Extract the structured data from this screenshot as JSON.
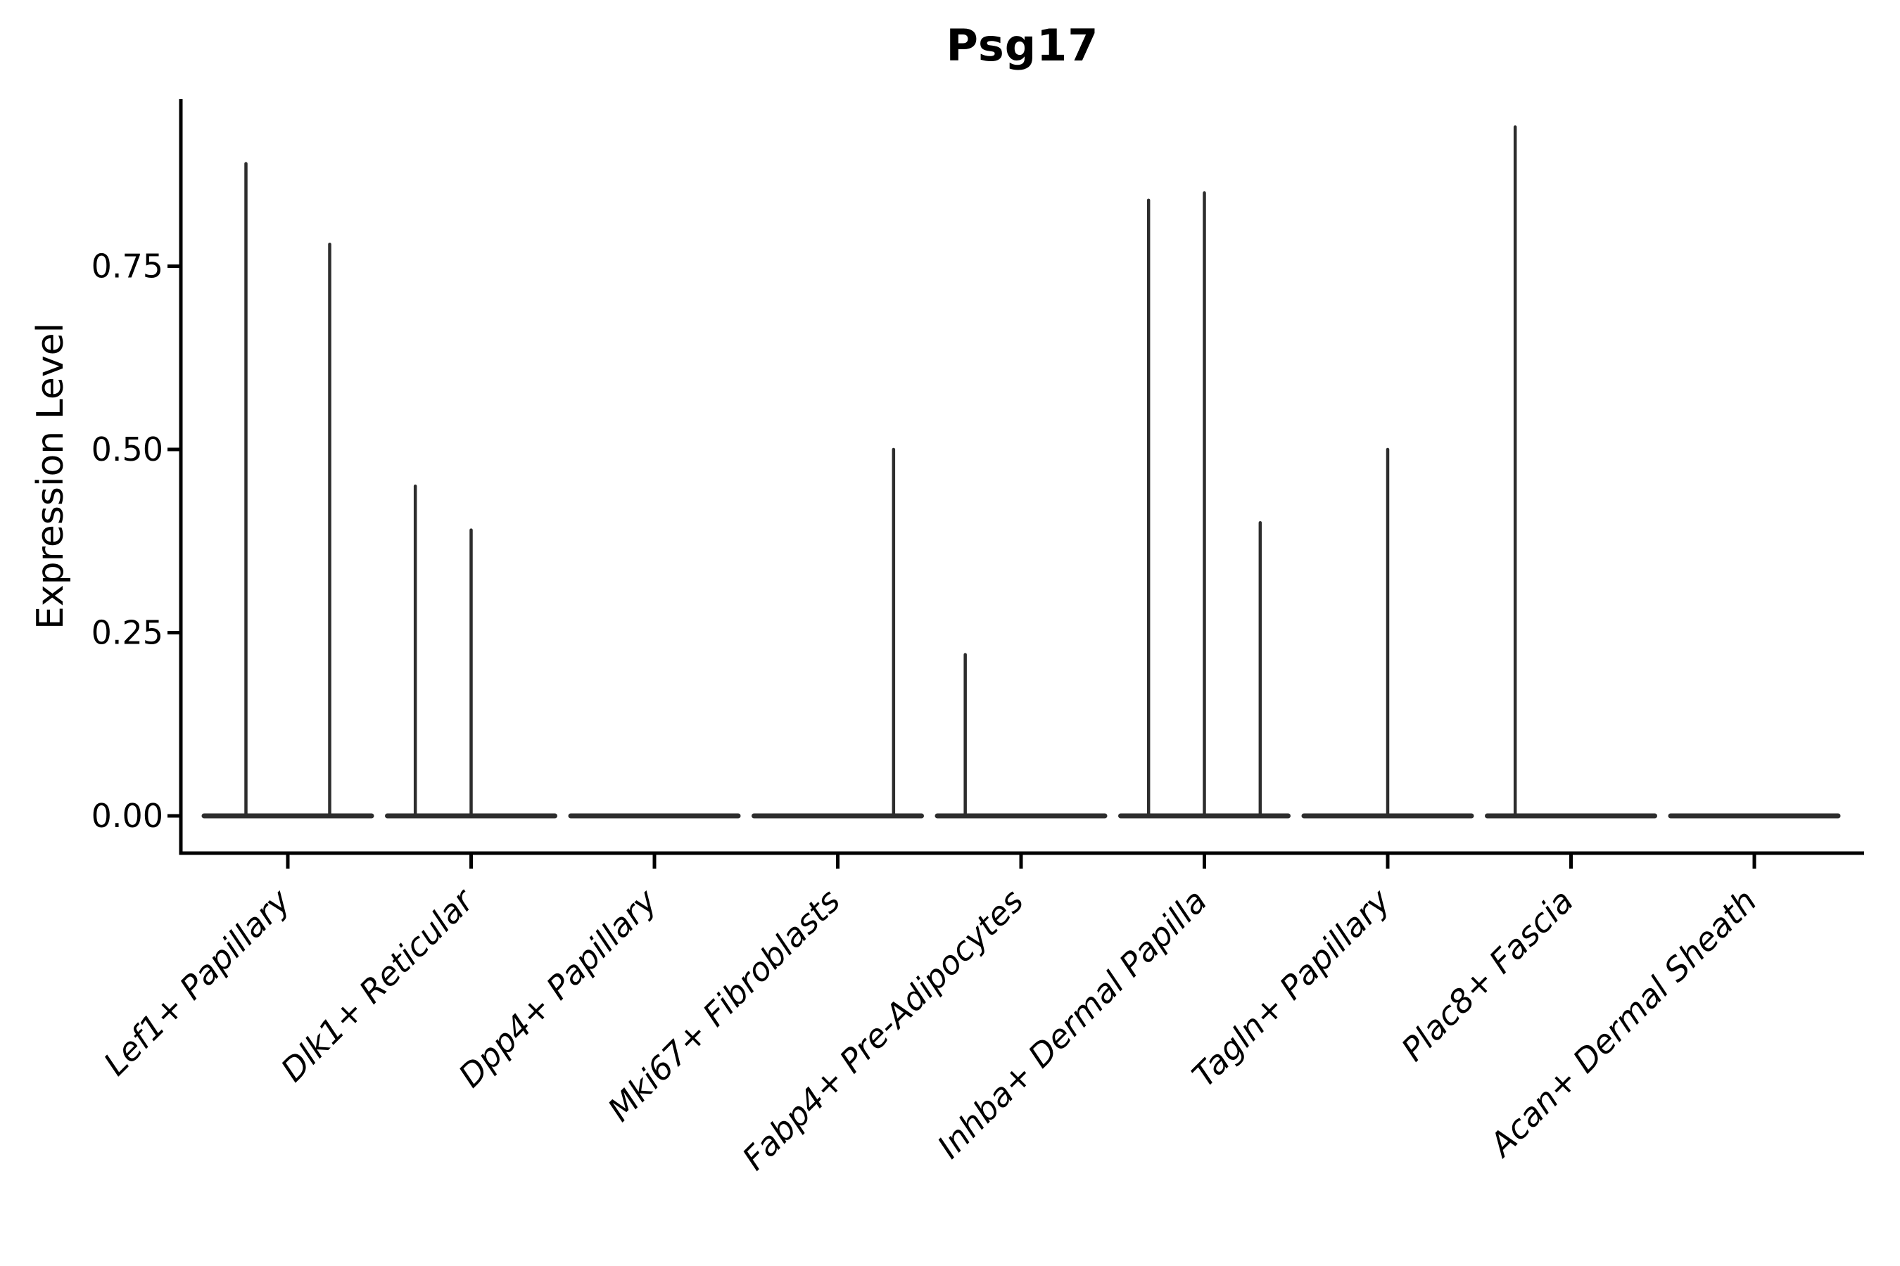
{
  "chart_data": {
    "type": "violin",
    "title": "Psg17",
    "xlabel": "",
    "ylabel": "Expression Level",
    "ylim": [
      0,
      0.98
    ],
    "yticks": [
      {
        "value": 0.0,
        "label": "0.00"
      },
      {
        "value": 0.25,
        "label": "0.25"
      },
      {
        "value": 0.5,
        "label": "0.50"
      },
      {
        "value": 0.75,
        "label": "0.75"
      }
    ],
    "grid": false,
    "legend": "none",
    "colors": {
      "spine": "#000000",
      "violin_stroke": "#2d2d2d",
      "text": "#000000",
      "background": "#ffffff"
    },
    "categories": [
      "Lef1+ Papillary",
      "Dlk1+ Reticular",
      "Dpp4+ Papillary",
      "Mki67+ Fibroblasts",
      "Fabp4+ Pre-Adipocytes",
      "Inhba+ Dermal Papilla",
      "Tagln+ Papillary",
      "Plac8+ Fascia",
      "Acan+ Dermal Sheath"
    ],
    "groups": [
      {
        "label": "Lef1+ Papillary",
        "slots": 2,
        "spikes": [
          {
            "slot": 1,
            "value": 0.89
          },
          {
            "slot": 2,
            "value": 0.78
          }
        ]
      },
      {
        "label": "Dlk1+ Reticular",
        "slots": 3,
        "spikes": [
          {
            "slot": 1,
            "value": 0.45
          },
          {
            "slot": 2,
            "value": 0.39
          }
        ]
      },
      {
        "label": "Dpp4+ Papillary",
        "slots": 3,
        "spikes": []
      },
      {
        "label": "Mki67+ Fibroblasts",
        "slots": 3,
        "spikes": [
          {
            "slot": 3,
            "value": 0.5
          }
        ]
      },
      {
        "label": "Fabp4+ Pre-Adipocytes",
        "slots": 3,
        "spikes": [
          {
            "slot": 1,
            "value": 0.22
          }
        ]
      },
      {
        "label": "Inhba+ Dermal Papilla",
        "slots": 3,
        "spikes": [
          {
            "slot": 1,
            "value": 0.84
          },
          {
            "slot": 2,
            "value": 0.85
          },
          {
            "slot": 3,
            "value": 0.4
          }
        ]
      },
      {
        "label": "Tagln+ Papillary",
        "slots": 3,
        "spikes": [
          {
            "slot": 2,
            "value": 0.5
          }
        ]
      },
      {
        "label": "Plac8+ Fascia",
        "slots": 3,
        "spikes": [
          {
            "slot": 1,
            "value": 0.94
          }
        ]
      },
      {
        "label": "Acan+ Dermal Sheath",
        "slots": 3,
        "spikes": []
      }
    ]
  }
}
